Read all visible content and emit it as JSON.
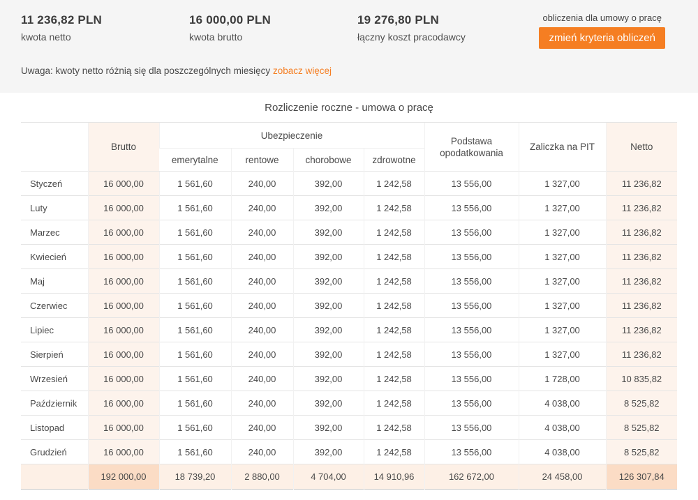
{
  "summary": {
    "stats": [
      {
        "value": "11 236,82 PLN",
        "label": "kwota netto"
      },
      {
        "value": "16 000,00 PLN",
        "label": "kwota brutto"
      },
      {
        "value": "19 276,80 PLN",
        "label": "łączny koszt pracodawcy"
      }
    ],
    "context_label": "obliczenia dla umowy o pracę",
    "change_button_label": "zmień kryteria obliczeń"
  },
  "notice": {
    "text": "Uwaga: kwoty netto różnią się dla poszczególnych miesięcy",
    "link_label": "zobacz więcej"
  },
  "table": {
    "title": "Rozliczenie roczne - umowa o pracę",
    "headers": {
      "brutto": "Brutto",
      "insurance_group": "Ubezpieczenie",
      "insurance_sub": [
        "emerytalne",
        "rentowe",
        "chorobowe",
        "zdrowotne"
      ],
      "tax_base": "Podstawa opodatkowania",
      "pit_advance": "Zaliczka na PIT",
      "netto": "Netto"
    },
    "rows": [
      {
        "month": "Styczeń",
        "values": [
          "16 000,00",
          "1 561,60",
          "240,00",
          "392,00",
          "1 242,58",
          "13 556,00",
          "1 327,00",
          "11 236,82"
        ]
      },
      {
        "month": "Luty",
        "values": [
          "16 000,00",
          "1 561,60",
          "240,00",
          "392,00",
          "1 242,58",
          "13 556,00",
          "1 327,00",
          "11 236,82"
        ]
      },
      {
        "month": "Marzec",
        "values": [
          "16 000,00",
          "1 561,60",
          "240,00",
          "392,00",
          "1 242,58",
          "13 556,00",
          "1 327,00",
          "11 236,82"
        ]
      },
      {
        "month": "Kwiecień",
        "values": [
          "16 000,00",
          "1 561,60",
          "240,00",
          "392,00",
          "1 242,58",
          "13 556,00",
          "1 327,00",
          "11 236,82"
        ]
      },
      {
        "month": "Maj",
        "values": [
          "16 000,00",
          "1 561,60",
          "240,00",
          "392,00",
          "1 242,58",
          "13 556,00",
          "1 327,00",
          "11 236,82"
        ]
      },
      {
        "month": "Czerwiec",
        "values": [
          "16 000,00",
          "1 561,60",
          "240,00",
          "392,00",
          "1 242,58",
          "13 556,00",
          "1 327,00",
          "11 236,82"
        ]
      },
      {
        "month": "Lipiec",
        "values": [
          "16 000,00",
          "1 561,60",
          "240,00",
          "392,00",
          "1 242,58",
          "13 556,00",
          "1 327,00",
          "11 236,82"
        ]
      },
      {
        "month": "Sierpień",
        "values": [
          "16 000,00",
          "1 561,60",
          "240,00",
          "392,00",
          "1 242,58",
          "13 556,00",
          "1 327,00",
          "11 236,82"
        ]
      },
      {
        "month": "Wrzesień",
        "values": [
          "16 000,00",
          "1 561,60",
          "240,00",
          "392,00",
          "1 242,58",
          "13 556,00",
          "1 728,00",
          "10 835,82"
        ]
      },
      {
        "month": "Październik",
        "values": [
          "16 000,00",
          "1 561,60",
          "240,00",
          "392,00",
          "1 242,58",
          "13 556,00",
          "4 038,00",
          "8 525,82"
        ]
      },
      {
        "month": "Listopad",
        "values": [
          "16 000,00",
          "1 561,60",
          "240,00",
          "392,00",
          "1 242,58",
          "13 556,00",
          "4 038,00",
          "8 525,82"
        ]
      },
      {
        "month": "Grudzień",
        "values": [
          "16 000,00",
          "1 561,60",
          "240,00",
          "392,00",
          "1 242,58",
          "13 556,00",
          "4 038,00",
          "8 525,82"
        ]
      }
    ],
    "total": {
      "month": "",
      "values": [
        "192 000,00",
        "18 739,20",
        "2 880,00",
        "4 704,00",
        "14 910,96",
        "162 672,00",
        "24 458,00",
        "126 307,84"
      ]
    }
  },
  "colors": {
    "accent_orange": "#f57e22",
    "strip_gray": "#f5f5f5",
    "peach_light": "#fdf3ec",
    "peach_total": "#fdf0e6",
    "peach_total_accent": "#fbdcc5"
  }
}
